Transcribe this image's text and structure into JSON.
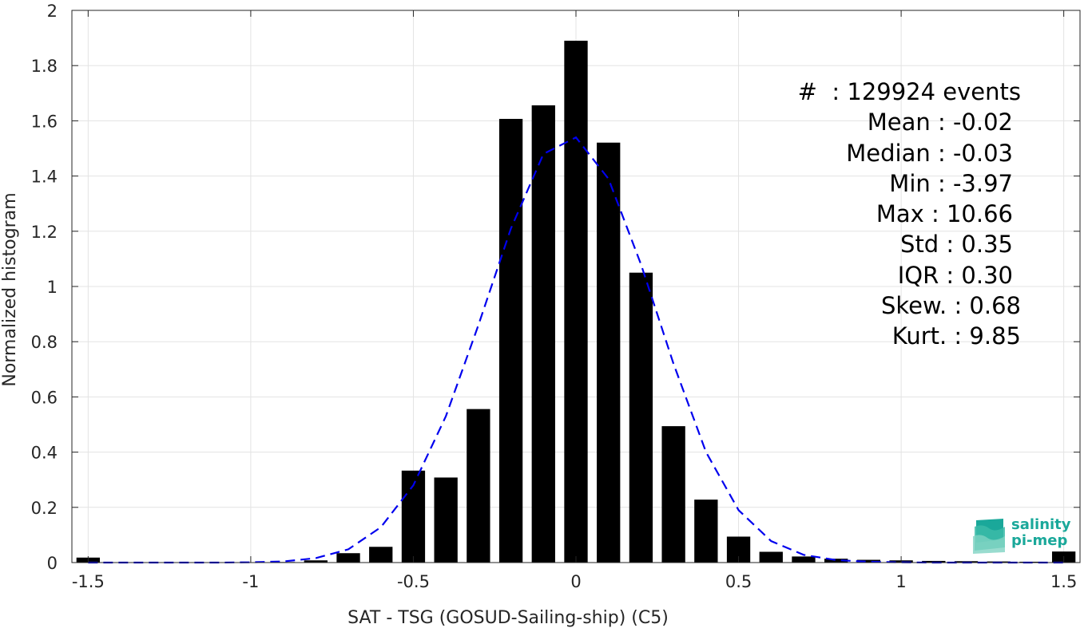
{
  "chart_data": {
    "type": "bar",
    "xlabel": "SAT - TSG (GOSUD-Sailing-ship) (C5)",
    "ylabel": "Normalized histogram",
    "xlim": [
      -1.55,
      1.55
    ],
    "ylim": [
      0,
      2
    ],
    "xticks": [
      -1.5,
      -1,
      -0.5,
      0,
      0.5,
      1,
      1.5
    ],
    "xtick_labels": [
      "-1.5",
      "-1",
      "-0.5",
      "0",
      "0.5",
      "1",
      "1.5"
    ],
    "yticks": [
      0,
      0.2,
      0.4,
      0.6,
      0.8,
      1,
      1.2,
      1.4,
      1.6,
      1.8,
      2
    ],
    "ytick_labels": [
      "0",
      "0.2",
      "0.4",
      "0.6",
      "0.8",
      "1",
      "1.2",
      "1.4",
      "1.6",
      "1.8",
      "2"
    ],
    "grid": true,
    "bar_color": "#000000",
    "fit_color": "#0000ee",
    "bins": [
      {
        "x": -1.5,
        "value": 0.018
      },
      {
        "x": -1.4,
        "value": 0.001
      },
      {
        "x": -1.3,
        "value": 0.001
      },
      {
        "x": -1.2,
        "value": 0.001
      },
      {
        "x": -1.1,
        "value": 0.001
      },
      {
        "x": -1.0,
        "value": 0.001
      },
      {
        "x": -0.9,
        "value": 0.002
      },
      {
        "x": -0.8,
        "value": 0.008
      },
      {
        "x": -0.7,
        "value": 0.034
      },
      {
        "x": -0.6,
        "value": 0.057
      },
      {
        "x": -0.5,
        "value": 0.333
      },
      {
        "x": -0.4,
        "value": 0.308
      },
      {
        "x": -0.3,
        "value": 0.556
      },
      {
        "x": -0.2,
        "value": 1.607
      },
      {
        "x": -0.1,
        "value": 1.656
      },
      {
        "x": 0.0,
        "value": 1.89
      },
      {
        "x": 0.1,
        "value": 1.521
      },
      {
        "x": 0.2,
        "value": 1.05
      },
      {
        "x": 0.3,
        "value": 0.494
      },
      {
        "x": 0.4,
        "value": 0.228
      },
      {
        "x": 0.5,
        "value": 0.094
      },
      {
        "x": 0.6,
        "value": 0.039
      },
      {
        "x": 0.7,
        "value": 0.022
      },
      {
        "x": 0.8,
        "value": 0.014
      },
      {
        "x": 0.9,
        "value": 0.01
      },
      {
        "x": 1.0,
        "value": 0.008
      },
      {
        "x": 1.1,
        "value": 0.006
      },
      {
        "x": 1.2,
        "value": 0.005
      },
      {
        "x": 1.3,
        "value": 0.004
      },
      {
        "x": 1.4,
        "value": 0.003
      },
      {
        "x": 1.5,
        "value": 0.04
      }
    ],
    "fit_curve": {
      "style": "dashed",
      "x": [
        -1.5,
        -1.4,
        -1.3,
        -1.2,
        -1.1,
        -1.0,
        -0.9,
        -0.8,
        -0.7,
        -0.6,
        -0.5,
        -0.4,
        -0.3,
        -0.2,
        -0.1,
        0.0,
        0.1,
        0.2,
        0.3,
        0.4,
        0.5,
        0.6,
        0.7,
        0.8,
        0.9,
        1.0,
        1.1,
        1.2,
        1.3,
        1.4,
        1.5
      ],
      "y": [
        0.0,
        0.0,
        0.0,
        0.0,
        0.0,
        0.001,
        0.004,
        0.016,
        0.048,
        0.128,
        0.28,
        0.53,
        0.86,
        1.21,
        1.48,
        1.54,
        1.39,
        1.08,
        0.72,
        0.4,
        0.19,
        0.078,
        0.028,
        0.009,
        0.003,
        0.001,
        0.0,
        0.0,
        0.0,
        0.0,
        0.0
      ]
    }
  },
  "stats": {
    "events": "#  : 129924 events",
    "mean": "Mean : -0.02",
    "median": "Median : -0.03",
    "min": "Min : -3.97",
    "max": "Max : 10.66",
    "std": "Std : 0.35",
    "iqr": "IQR : 0.30",
    "skew": "Skew. : 0.68",
    "kurt": "Kurt. : 9.85"
  },
  "logo": {
    "line1": "salinity",
    "line2": "pi-mep",
    "color": "#1aa89a"
  }
}
